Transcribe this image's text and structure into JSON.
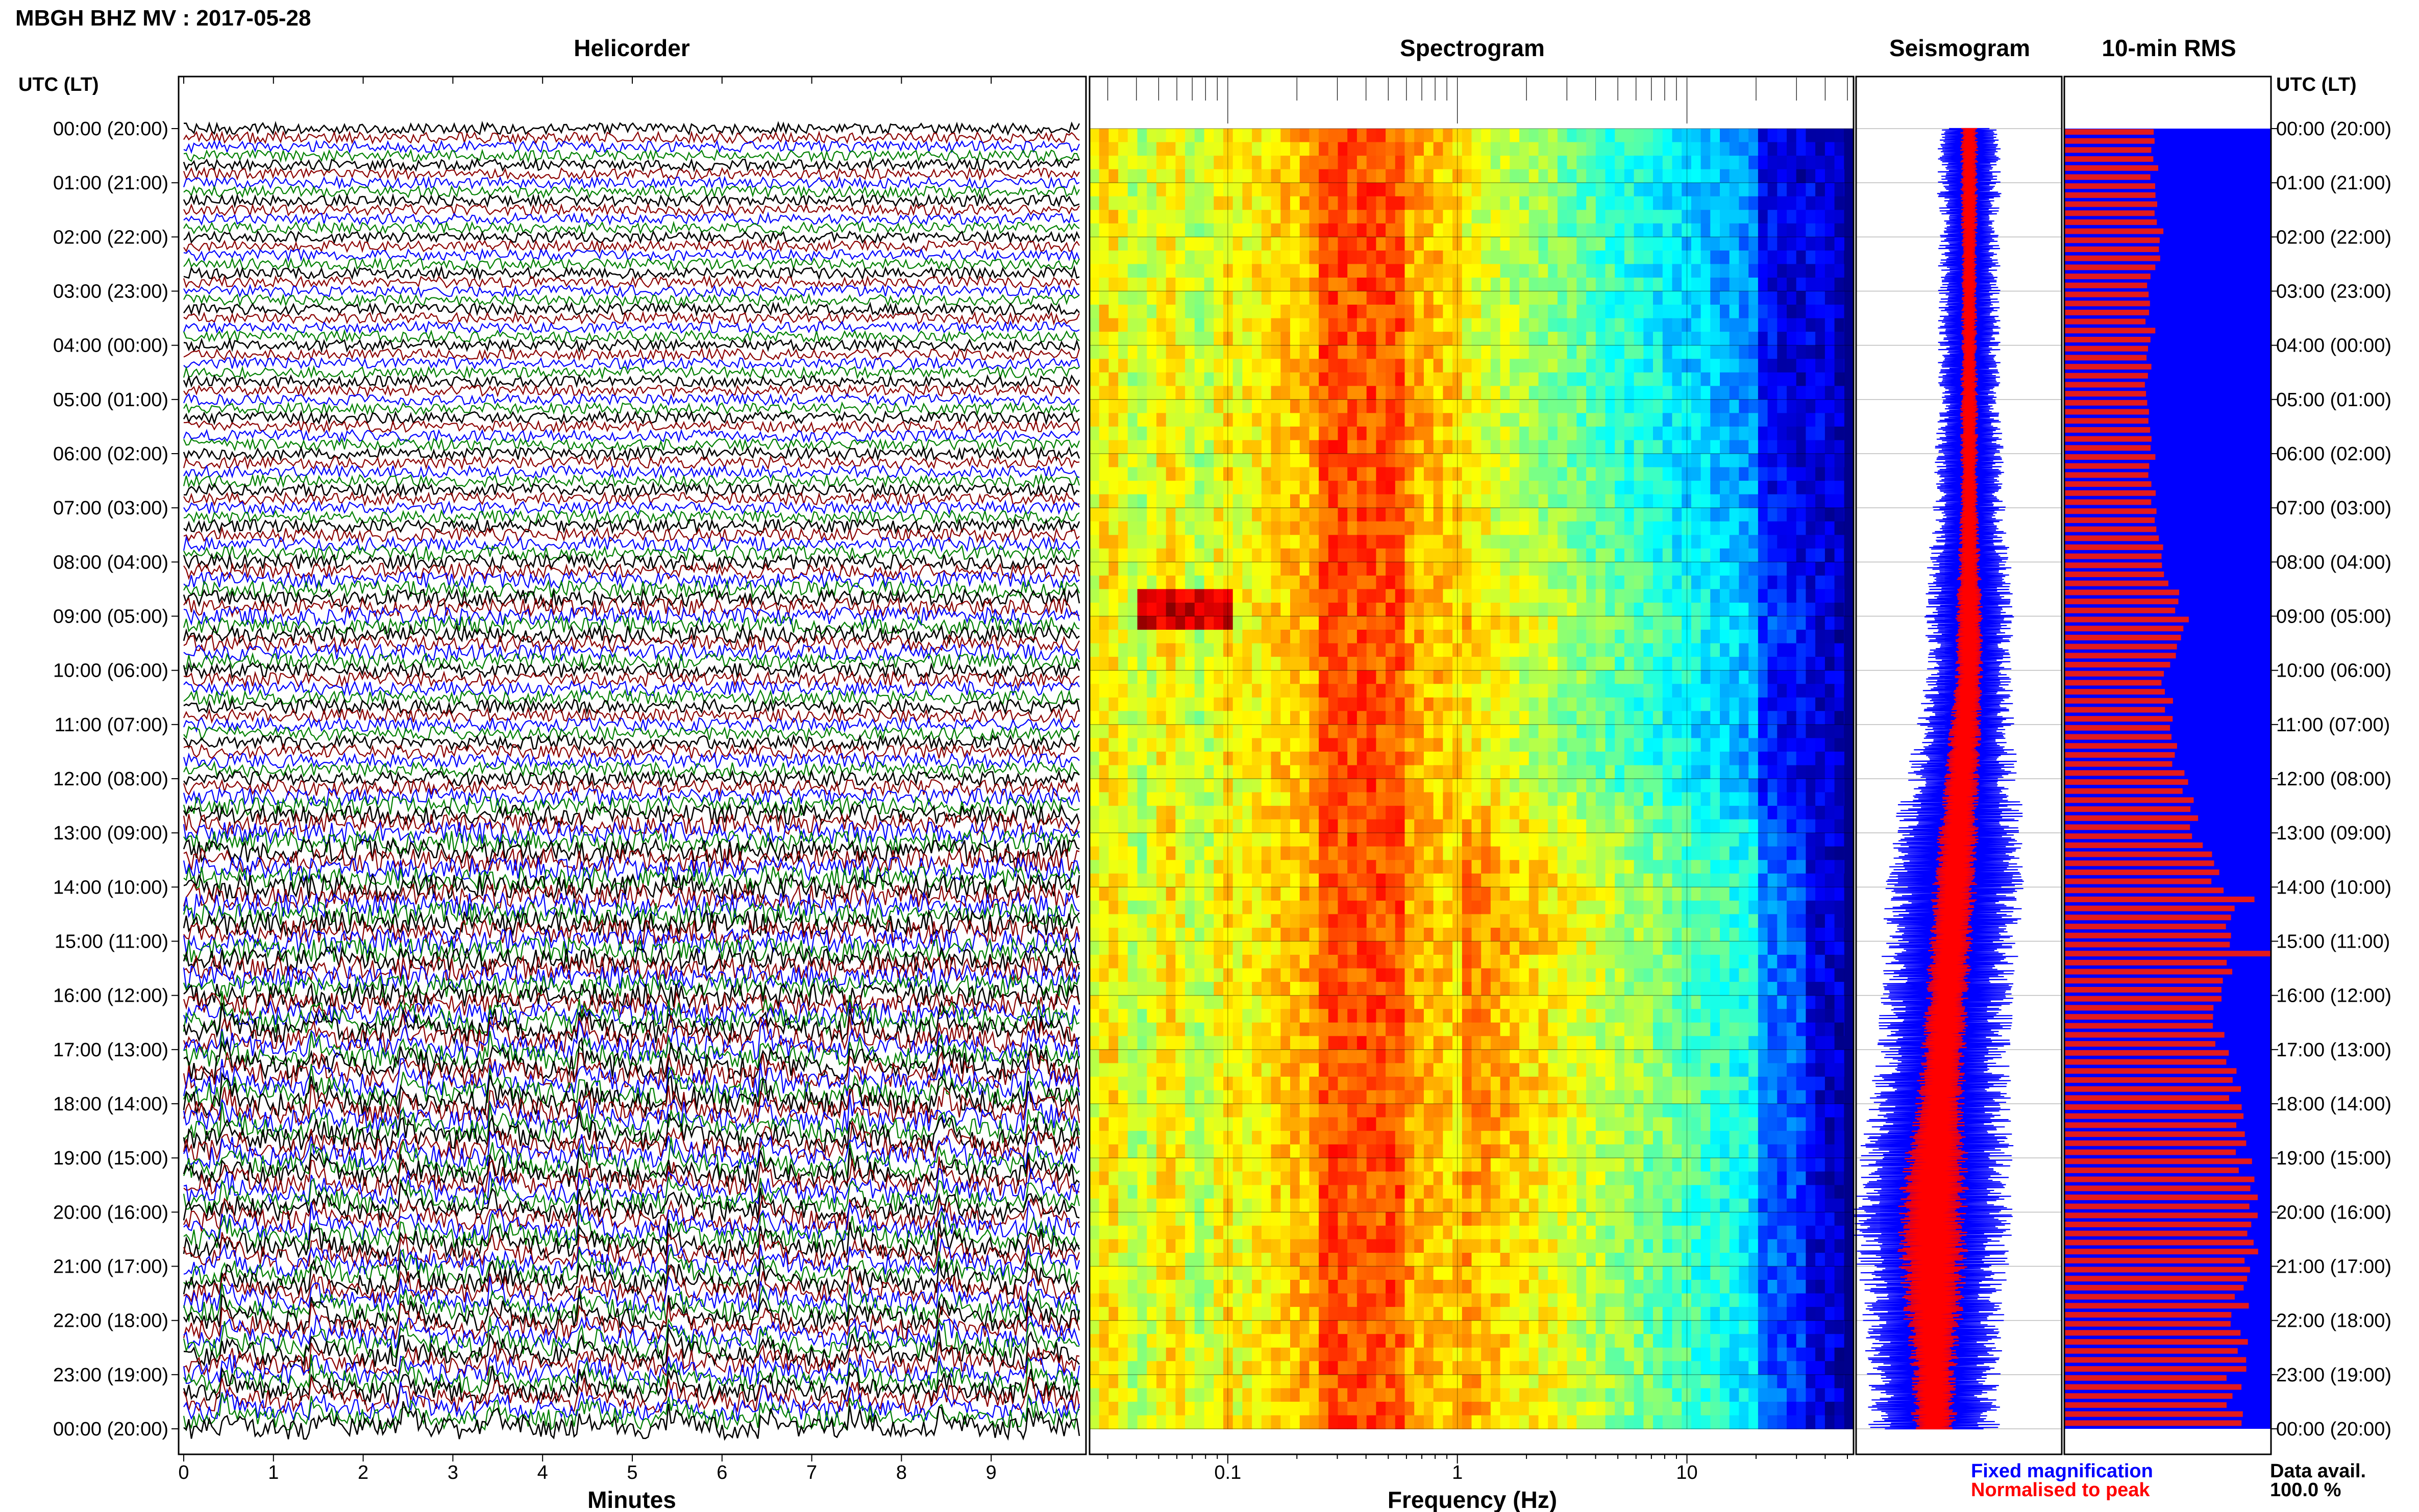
{
  "title": "MBGH BHZ MV : 2017-05-28",
  "panels": {
    "helicorder": "Helicorder",
    "spectrogram": "Spectrogram",
    "seismogram": "Seismogram",
    "rms": "10-min RMS"
  },
  "axis_header_left": "UTC (LT)",
  "axis_header_right": "UTC (LT)",
  "xlabels": {
    "helicorder": "Minutes",
    "spectrogram": "Frequency (Hz)"
  },
  "legend": {
    "fixed": "Fixed magnification",
    "normalised": "Normalised to peak",
    "fixed_color": "#0000ff",
    "normalised_color": "#ff0000"
  },
  "data_avail": {
    "label": "Data avail.",
    "value": "100.0 %"
  },
  "colors": {
    "trace": [
      "#000000",
      "#8b0000",
      "#0000ff",
      "#008000"
    ],
    "rms_fill": "#0000ff",
    "rms_bar": "#e31a1c"
  },
  "chart_data": {
    "type": "heatmap",
    "time_labels": [
      "00:00 (20:00)",
      "01:00 (21:00)",
      "02:00 (22:00)",
      "03:00 (23:00)",
      "04:00 (00:00)",
      "05:00 (01:00)",
      "06:00 (02:00)",
      "07:00 (03:00)",
      "08:00 (04:00)",
      "09:00 (05:00)",
      "10:00 (06:00)",
      "11:00 (07:00)",
      "12:00 (08:00)",
      "13:00 (09:00)",
      "14:00 (10:00)",
      "15:00 (11:00)",
      "16:00 (12:00)",
      "17:00 (13:00)",
      "18:00 (14:00)",
      "19:00 (15:00)",
      "20:00 (16:00)",
      "21:00 (17:00)",
      "22:00 (18:00)",
      "23:00 (19:00)",
      "00:00 (20:00)"
    ],
    "helicorder": {
      "x_ticks": [
        "0",
        "1",
        "2",
        "3",
        "4",
        "5",
        "6",
        "7",
        "8",
        "9"
      ],
      "xlim": [
        0,
        10
      ],
      "rows": 144,
      "amplitude_by_hour": [
        0.45,
        0.45,
        0.45,
        0.45,
        0.45,
        0.45,
        0.48,
        0.5,
        0.6,
        0.75,
        0.6,
        0.55,
        0.6,
        0.9,
        1.0,
        1.0,
        0.95,
        0.95,
        1.0,
        0.9,
        0.85,
        0.85,
        0.85,
        0.85
      ],
      "eruption_spikes_minutes": [
        0.4,
        1.4,
        2.4,
        3.4,
        4.4,
        5.4,
        6.4,
        7.4,
        8.4,
        9.4
      ],
      "eruption_hours": [
        16.5,
        24
      ]
    },
    "spectrogram": {
      "x_ticks": [
        "0.1",
        "1",
        "10"
      ],
      "x_scale": "log",
      "xlim": [
        0.025,
        50
      ],
      "peak_band_hz": [
        0.25,
        0.6
      ]
    },
    "seismogram": {
      "series": [
        {
          "name": "Fixed magnification",
          "values_by_hour": [
            0.28,
            0.28,
            0.27,
            0.27,
            0.27,
            0.27,
            0.3,
            0.32,
            0.36,
            0.4,
            0.38,
            0.42,
            0.5,
            0.58,
            0.6,
            0.6,
            0.58,
            0.58,
            0.62,
            0.68,
            0.7,
            0.66,
            0.62,
            0.58
          ]
        },
        {
          "name": "Normalised to peak",
          "values_by_hour": [
            0.08,
            0.08,
            0.07,
            0.07,
            0.07,
            0.08,
            0.08,
            0.08,
            0.1,
            0.12,
            0.12,
            0.14,
            0.16,
            0.18,
            0.2,
            0.2,
            0.2,
            0.2,
            0.22,
            0.28,
            0.32,
            0.3,
            0.26,
            0.2
          ]
        }
      ]
    },
    "rms": {
      "values_by_hour": [
        0.42,
        0.44,
        0.46,
        0.42,
        0.42,
        0.4,
        0.42,
        0.44,
        0.5,
        0.58,
        0.5,
        0.52,
        0.58,
        0.66,
        0.78,
        0.82,
        0.76,
        0.78,
        0.84,
        0.88,
        0.92,
        0.9,
        0.86,
        0.84
      ],
      "spikes": [
        {
          "hour": 14.2,
          "value": 0.92
        },
        {
          "hour": 15.1,
          "value": 1.0
        }
      ]
    }
  }
}
